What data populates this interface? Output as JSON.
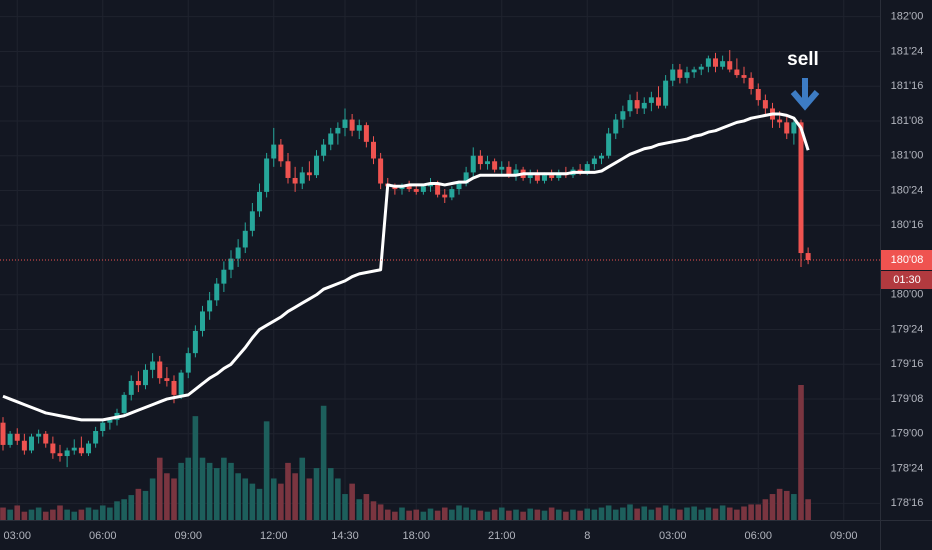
{
  "chart_data": {
    "type": "candlestick",
    "annotation": "sell",
    "last_price": {
      "value": 180.25,
      "label": "180'08"
    },
    "countdown": "01:30",
    "up_color": "#26a69a",
    "down_color": "#ef5350",
    "ma_color": "#ffffff",
    "volume_up_color": "#1d5f5c",
    "volume_down_color": "#7a3540",
    "grid": true,
    "ylim": [
      178.38,
      182.12
    ],
    "yticks": [
      {
        "value": 182,
        "label": "182'00"
      },
      {
        "value": 181.75,
        "label": "181'24"
      },
      {
        "value": 181.5,
        "label": "181'16"
      },
      {
        "value": 181.25,
        "label": "181'08"
      },
      {
        "value": 181,
        "label": "181'00"
      },
      {
        "value": 180.75,
        "label": "180'24"
      },
      {
        "value": 180.5,
        "label": "180'16"
      },
      {
        "value": 180,
        "label": "180'00"
      },
      {
        "value": 179.75,
        "label": "179'24"
      },
      {
        "value": 179.5,
        "label": "179'16"
      },
      {
        "value": 179.25,
        "label": "179'08"
      },
      {
        "value": 179,
        "label": "179'00"
      },
      {
        "value": 178.75,
        "label": "178'24"
      },
      {
        "value": 178.5,
        "label": "178'16"
      }
    ],
    "categories": [
      null,
      null,
      "03:00",
      null,
      null,
      null,
      null,
      null,
      null,
      null,
      null,
      null,
      null,
      null,
      "06:00",
      null,
      null,
      null,
      null,
      null,
      null,
      null,
      null,
      null,
      null,
      null,
      "09:00",
      null,
      null,
      null,
      null,
      null,
      null,
      null,
      null,
      null,
      null,
      null,
      "12:00",
      null,
      null,
      null,
      null,
      null,
      null,
      null,
      null,
      null,
      "14:30",
      null,
      null,
      null,
      null,
      null,
      null,
      null,
      null,
      null,
      "18:00",
      null,
      null,
      null,
      null,
      null,
      null,
      null,
      null,
      null,
      null,
      null,
      "21:00",
      null,
      null,
      null,
      null,
      null,
      null,
      null,
      null,
      null,
      null,
      null,
      "8",
      null,
      null,
      null,
      null,
      null,
      null,
      null,
      null,
      null,
      null,
      null,
      "03:00",
      null,
      null,
      null,
      null,
      null,
      null,
      null,
      null,
      null,
      null,
      null,
      "06:00",
      null,
      null,
      null,
      null,
      null,
      null,
      null,
      null,
      null,
      null,
      null,
      "09:00",
      null
    ],
    "open": [
      179.08,
      178.92,
      179.0,
      178.95,
      178.88,
      178.98,
      179.0,
      178.93,
      178.86,
      178.84,
      178.88,
      178.9,
      178.86,
      178.93,
      179.02,
      179.08,
      179.1,
      179.15,
      179.28,
      179.38,
      179.35,
      179.46,
      179.52,
      179.4,
      179.38,
      179.28,
      179.44,
      179.58,
      179.74,
      179.88,
      179.96,
      180.08,
      180.18,
      180.26,
      180.34,
      180.46,
      180.6,
      180.74,
      180.98,
      181.08,
      180.96,
      180.84,
      180.8,
      180.88,
      180.86,
      181.0,
      181.08,
      181.16,
      181.2,
      181.26,
      181.18,
      181.22,
      181.1,
      180.98,
      180.8,
      180.78,
      180.76,
      180.78,
      180.76,
      180.74,
      180.78,
      180.8,
      180.72,
      180.7,
      180.76,
      180.8,
      180.88,
      181.0,
      180.94,
      180.96,
      180.9,
      180.92,
      180.86,
      180.9,
      180.84,
      180.86,
      180.82,
      180.86,
      180.84,
      180.88,
      180.86,
      180.9,
      180.88,
      180.94,
      180.98,
      181.0,
      181.16,
      181.26,
      181.32,
      181.4,
      181.34,
      181.38,
      181.42,
      181.36,
      181.54,
      181.62,
      181.56,
      181.6,
      181.62,
      181.64,
      181.7,
      181.64,
      181.68,
      181.62,
      181.58,
      181.56,
      181.48,
      181.4,
      181.34,
      181.26,
      181.24,
      181.16,
      181.24,
      180.3,
      null,
      null,
      null,
      null,
      null,
      null
    ],
    "high": [
      179.12,
      179.02,
      179.04,
      179.0,
      179.0,
      179.03,
      179.02,
      178.98,
      178.92,
      178.9,
      178.96,
      178.98,
      178.95,
      179.05,
      179.1,
      179.12,
      179.18,
      179.3,
      179.42,
      179.45,
      179.5,
      179.58,
      179.56,
      179.48,
      179.42,
      179.46,
      179.62,
      179.78,
      179.92,
      180.02,
      180.12,
      180.24,
      180.32,
      180.4,
      180.52,
      180.66,
      180.8,
      181.02,
      181.2,
      181.12,
      181.02,
      180.92,
      180.92,
      180.96,
      181.04,
      181.12,
      181.2,
      181.24,
      181.34,
      181.3,
      181.26,
      181.24,
      181.14,
      181.02,
      180.84,
      180.8,
      180.8,
      180.82,
      180.8,
      180.8,
      180.84,
      180.82,
      180.76,
      180.78,
      180.82,
      180.92,
      181.06,
      181.04,
      181.0,
      180.98,
      180.96,
      180.96,
      180.94,
      180.92,
      180.9,
      180.9,
      180.88,
      180.9,
      180.9,
      180.92,
      180.92,
      180.94,
      180.96,
      181.0,
      181.02,
      181.2,
      181.3,
      181.36,
      181.44,
      181.46,
      181.42,
      181.46,
      181.5,
      181.58,
      181.66,
      181.66,
      181.64,
      181.64,
      181.66,
      181.72,
      181.74,
      181.72,
      181.76,
      181.7,
      181.64,
      181.6,
      181.52,
      181.44,
      181.38,
      181.32,
      181.28,
      181.28,
      181.26,
      180.34,
      null,
      null,
      null,
      null,
      null,
      null
    ],
    "low": [
      178.88,
      178.9,
      178.92,
      178.85,
      178.86,
      178.93,
      178.9,
      178.82,
      178.8,
      178.76,
      178.85,
      178.84,
      178.84,
      178.9,
      178.98,
      179.03,
      179.06,
      179.12,
      179.24,
      179.3,
      179.32,
      179.4,
      179.36,
      179.34,
      179.22,
      179.25,
      179.4,
      179.55,
      179.7,
      179.82,
      179.92,
      180.02,
      180.12,
      180.2,
      180.3,
      180.42,
      180.56,
      180.7,
      180.92,
      180.92,
      180.8,
      180.74,
      180.76,
      180.82,
      180.84,
      180.96,
      181.04,
      181.08,
      181.14,
      181.14,
      181.12,
      181.06,
      180.94,
      180.76,
      180.74,
      180.72,
      180.72,
      180.74,
      180.72,
      180.72,
      180.74,
      180.7,
      180.66,
      180.68,
      180.72,
      180.78,
      180.84,
      180.9,
      180.9,
      180.88,
      180.86,
      180.84,
      180.82,
      180.82,
      180.8,
      180.8,
      180.8,
      180.82,
      180.82,
      180.84,
      180.84,
      180.86,
      180.86,
      180.9,
      180.94,
      180.98,
      181.12,
      181.2,
      181.28,
      181.3,
      181.3,
      181.32,
      181.34,
      181.34,
      181.5,
      181.52,
      181.52,
      181.56,
      181.58,
      181.6,
      181.6,
      181.62,
      181.6,
      181.56,
      181.52,
      181.44,
      181.36,
      181.3,
      181.2,
      181.2,
      181.12,
      181.08,
      180.2,
      180.22,
      null,
      null,
      null,
      null,
      null,
      null
    ],
    "close": [
      178.92,
      179.0,
      178.95,
      178.88,
      178.98,
      179.0,
      178.93,
      178.86,
      178.84,
      178.88,
      178.9,
      178.86,
      178.93,
      179.02,
      179.08,
      179.1,
      179.15,
      179.28,
      179.38,
      179.35,
      179.46,
      179.52,
      179.4,
      179.38,
      179.28,
      179.44,
      179.58,
      179.74,
      179.88,
      179.96,
      180.08,
      180.18,
      180.26,
      180.34,
      180.46,
      180.6,
      180.74,
      180.98,
      181.08,
      180.96,
      180.84,
      180.8,
      180.88,
      180.86,
      181.0,
      181.08,
      181.16,
      181.2,
      181.26,
      181.18,
      181.22,
      181.1,
      180.98,
      180.8,
      180.78,
      180.76,
      180.78,
      180.76,
      180.74,
      180.78,
      180.8,
      180.72,
      180.7,
      180.76,
      180.8,
      180.88,
      181.0,
      180.94,
      180.96,
      180.9,
      180.92,
      180.86,
      180.9,
      180.84,
      180.86,
      180.82,
      180.86,
      180.84,
      180.88,
      180.86,
      180.9,
      180.88,
      180.94,
      180.98,
      181.0,
      181.16,
      181.26,
      181.32,
      181.4,
      181.34,
      181.38,
      181.42,
      181.36,
      181.54,
      181.62,
      181.56,
      181.6,
      181.62,
      181.64,
      181.7,
      181.64,
      181.68,
      181.62,
      181.58,
      181.56,
      181.48,
      181.4,
      181.34,
      181.26,
      181.24,
      181.16,
      181.24,
      180.3,
      180.25,
      null,
      null,
      null,
      null,
      null,
      null
    ],
    "ma": [
      179.27,
      179.25,
      179.23,
      179.21,
      179.19,
      179.17,
      179.15,
      179.14,
      179.13,
      179.12,
      179.11,
      179.1,
      179.1,
      179.1,
      179.1,
      179.11,
      179.12,
      179.13,
      179.15,
      179.17,
      179.19,
      179.21,
      179.23,
      179.25,
      179.26,
      179.27,
      179.28,
      179.32,
      179.36,
      179.4,
      179.43,
      179.47,
      179.5,
      179.56,
      179.62,
      179.69,
      179.75,
      179.78,
      179.81,
      179.84,
      179.88,
      179.91,
      179.94,
      179.97,
      180.0,
      180.04,
      180.06,
      180.08,
      180.1,
      180.13,
      180.15,
      180.16,
      180.17,
      180.18,
      180.79,
      180.78,
      180.78,
      180.79,
      180.79,
      180.79,
      180.8,
      180.8,
      180.79,
      180.8,
      180.81,
      180.81,
      180.84,
      180.86,
      180.86,
      180.86,
      180.86,
      180.86,
      180.86,
      180.87,
      180.87,
      180.87,
      180.87,
      180.87,
      180.87,
      180.87,
      180.88,
      180.88,
      180.88,
      180.88,
      180.89,
      180.92,
      180.95,
      180.98,
      181.01,
      181.03,
      181.05,
      181.06,
      181.08,
      181.09,
      181.1,
      181.11,
      181.12,
      181.14,
      181.15,
      181.17,
      181.18,
      181.2,
      181.22,
      181.24,
      181.25,
      181.27,
      181.28,
      181.29,
      181.3,
      181.3,
      181.29,
      181.27,
      181.2,
      181.04,
      null,
      null,
      null,
      null,
      null,
      null
    ],
    "volume": [
      12,
      10,
      14,
      8,
      10,
      12,
      8,
      10,
      14,
      10,
      8,
      10,
      12,
      10,
      14,
      12,
      18,
      20,
      24,
      30,
      28,
      40,
      60,
      45,
      40,
      55,
      60,
      100,
      60,
      55,
      50,
      60,
      55,
      45,
      40,
      35,
      30,
      95,
      40,
      35,
      55,
      45,
      60,
      40,
      50,
      110,
      50,
      40,
      25,
      35,
      20,
      25,
      18,
      15,
      10,
      8,
      12,
      9,
      10,
      8,
      11,
      9,
      12,
      10,
      14,
      12,
      10,
      9,
      8,
      10,
      12,
      9,
      10,
      8,
      11,
      10,
      9,
      12,
      10,
      8,
      10,
      9,
      11,
      10,
      12,
      14,
      10,
      12,
      15,
      11,
      13,
      10,
      12,
      14,
      11,
      10,
      12,
      13,
      10,
      12,
      11,
      14,
      12,
      10,
      13,
      15,
      15,
      20,
      25,
      30,
      28,
      25,
      130,
      20,
      null,
      null,
      null,
      null,
      null,
      null
    ]
  }
}
